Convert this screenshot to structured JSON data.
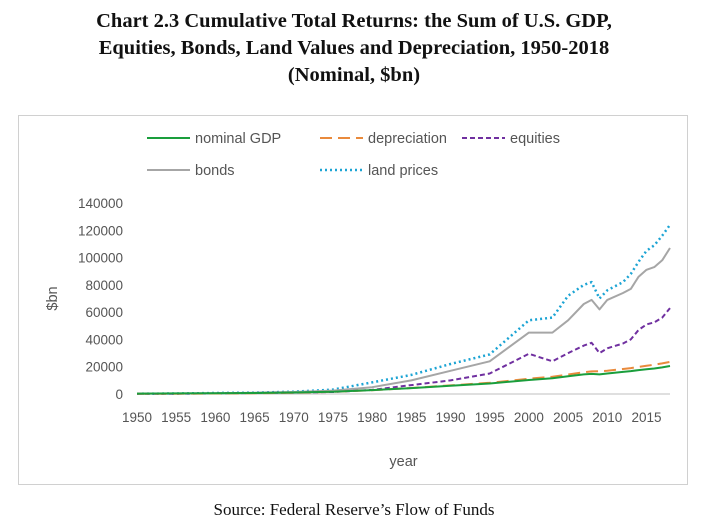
{
  "title_lines": [
    "Chart 2.3 Cumulative Total Returns: the Sum of U.S. GDP,",
    "Equities, Bonds, Land Values and Depreciation, 1950-2018",
    "(Nominal, $bn)"
  ],
  "source": "Source: Federal Reserve’s Flow of Funds",
  "chart_data": {
    "type": "line",
    "xlabel": "year",
    "ylabel": "$bn",
    "xlim": [
      1950,
      2018
    ],
    "ylim": [
      0,
      140000
    ],
    "yticks": [
      0,
      20000,
      40000,
      60000,
      80000,
      100000,
      120000,
      140000
    ],
    "xticks": [
      1950,
      1955,
      1960,
      1965,
      1970,
      1975,
      1980,
      1985,
      1990,
      1995,
      2000,
      2005,
      2010,
      2015
    ],
    "x": [
      1950,
      1955,
      1960,
      1965,
      1970,
      1975,
      1980,
      1985,
      1990,
      1995,
      2000,
      2003,
      2005,
      2007,
      2008,
      2009,
      2010,
      2012,
      2013,
      2014,
      2015,
      2016,
      2017,
      2018
    ],
    "legend_position": "top",
    "series": [
      {
        "name": "nominal GDP",
        "color": "#1a9e3c",
        "dash": "solid",
        "values": [
          300,
          420,
          550,
          740,
          1070,
          1690,
          2860,
          4340,
          5980,
          7660,
          10250,
          11500,
          13000,
          14400,
          14700,
          14400,
          15000,
          16200,
          16800,
          17500,
          18200,
          18700,
          19500,
          20500
        ]
      },
      {
        "name": "depreciation",
        "color": "#e98a3c",
        "dash": "dashed",
        "values": [
          150,
          250,
          380,
          550,
          900,
          1600,
          2800,
          4400,
          6300,
          8200,
          11200,
          12700,
          14300,
          16000,
          16600,
          16700,
          17000,
          18300,
          19000,
          19900,
          20700,
          21500,
          22400,
          23500
        ]
      },
      {
        "name": "equities",
        "color": "#7030a0",
        "dash": "dashdot",
        "values": [
          150,
          250,
          430,
          700,
          1050,
          1500,
          3000,
          6500,
          10000,
          15000,
          29500,
          24000,
          30000,
          35500,
          37500,
          30000,
          33500,
          37000,
          40000,
          47000,
          51000,
          52500,
          56000,
          63000
        ]
      },
      {
        "name": "bonds",
        "color": "#a6a6a6",
        "dash": "solid",
        "values": [
          200,
          350,
          600,
          900,
          1500,
          2500,
          5000,
          10000,
          17000,
          24000,
          45000,
          45000,
          54000,
          66000,
          69000,
          62000,
          69000,
          74000,
          77000,
          86000,
          91000,
          93000,
          98000,
          107000
        ]
      },
      {
        "name": "land prices",
        "color": "#1ca4d4",
        "dash": "dotted",
        "values": [
          250,
          400,
          700,
          1050,
          1700,
          3200,
          8500,
          14000,
          22000,
          29000,
          54000,
          56000,
          72000,
          80000,
          82000,
          70000,
          76000,
          82000,
          88000,
          97000,
          105000,
          109000,
          116000,
          124000
        ]
      }
    ]
  }
}
